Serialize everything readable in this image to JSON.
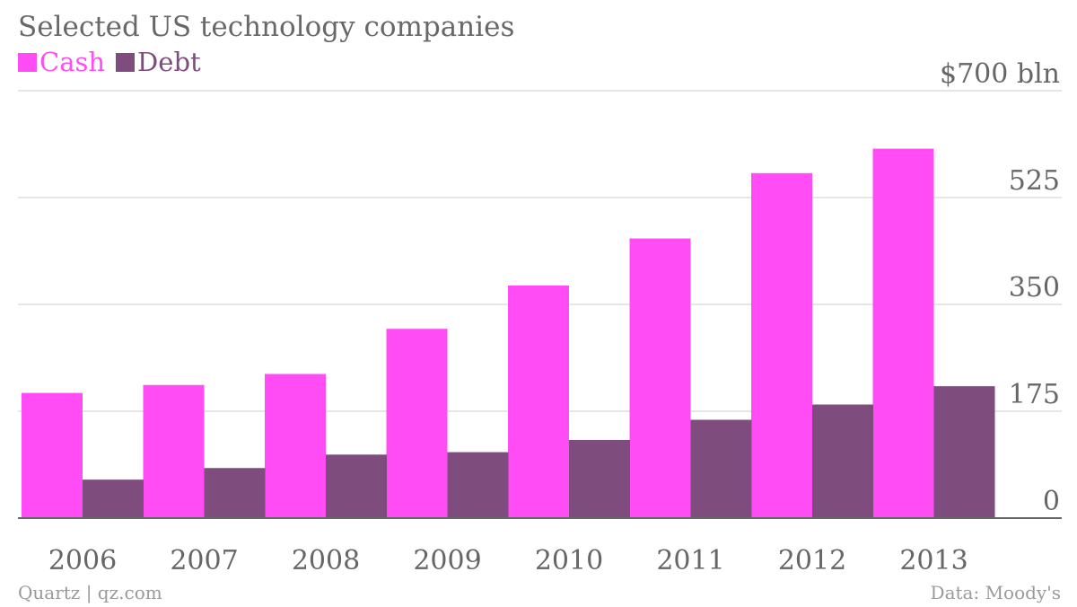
{
  "colors": {
    "cash": "#ff4cf5",
    "debt": "#7e4d7e",
    "grid": "#dddddd",
    "axis": "#666666",
    "text": "#666666"
  },
  "chart_data": {
    "type": "bar",
    "title": "Selected US technology companies",
    "categories": [
      "2006",
      "2007",
      "2008",
      "2009",
      "2010",
      "2011",
      "2012",
      "2013"
    ],
    "series": [
      {
        "name": "Cash",
        "values": [
          205,
          218,
          236,
          310,
          381,
          458,
          565,
          605
        ]
      },
      {
        "name": "Debt",
        "values": [
          63,
          82,
          104,
          108,
          128,
          161,
          186,
          216
        ]
      }
    ],
    "yticks": [
      {
        "value": 0,
        "label": "0"
      },
      {
        "value": 175,
        "label": "175"
      },
      {
        "value": 350,
        "label": "350"
      },
      {
        "value": 525,
        "label": "525"
      },
      {
        "value": 700,
        "label": "$700 bln"
      }
    ],
    "ylim": [
      0,
      700
    ],
    "grid": true,
    "legend_position": "top-left",
    "source_left": "Quartz | qz.com",
    "source_right": "Data: Moody's"
  }
}
